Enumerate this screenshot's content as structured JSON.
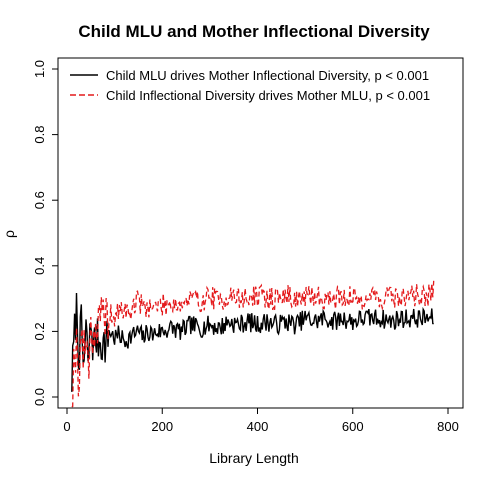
{
  "chart_data": {
    "type": "line",
    "title": "Child MLU and Mother Inflectional Diversity",
    "xlabel": "Library Length",
    "ylabel": "ρ",
    "xlim": [
      0,
      800
    ],
    "ylim": [
      0,
      1.0
    ],
    "xticks": [
      "0",
      "200",
      "400",
      "600",
      "800"
    ],
    "yticks": [
      "0.0",
      "0.2",
      "0.4",
      "0.6",
      "0.8",
      "1.0"
    ],
    "grid": false,
    "legend_position": "top-left",
    "library_length_range": [
      10,
      770
    ],
    "series": [
      {
        "name": "Child MLU drives Mother Inflectional Diversity, p < 0.001",
        "color": "#000000",
        "dash": "solid",
        "x": [
          10,
          15,
          20,
          25,
          30,
          35,
          40,
          45,
          50,
          55,
          60,
          70,
          80,
          90,
          100,
          110,
          120,
          130,
          140,
          150,
          160,
          170,
          180,
          190,
          200,
          220,
          240,
          260,
          280,
          300,
          320,
          340,
          360,
          380,
          400,
          420,
          440,
          460,
          480,
          500,
          520,
          540,
          560,
          580,
          600,
          620,
          640,
          660,
          680,
          700,
          720,
          740,
          760,
          770
        ],
        "values": [
          0.05,
          0.18,
          0.27,
          0.12,
          0.22,
          0.08,
          0.2,
          0.1,
          0.23,
          0.15,
          0.18,
          0.17,
          0.16,
          0.2,
          0.18,
          0.19,
          0.17,
          0.18,
          0.19,
          0.2,
          0.18,
          0.2,
          0.19,
          0.2,
          0.2,
          0.21,
          0.2,
          0.22,
          0.21,
          0.22,
          0.21,
          0.23,
          0.22,
          0.23,
          0.22,
          0.23,
          0.22,
          0.23,
          0.22,
          0.24,
          0.23,
          0.24,
          0.23,
          0.24,
          0.23,
          0.24,
          0.24,
          0.24,
          0.23,
          0.24,
          0.24,
          0.24,
          0.24,
          0.24
        ],
        "noise": 0.03,
        "seed": 7
      },
      {
        "name": "Child Inflectional Diversity drives Mother MLU, p < 0.001",
        "color": "#e41a1c",
        "dash": "dashed",
        "x": [
          10,
          15,
          20,
          25,
          30,
          35,
          40,
          45,
          50,
          55,
          60,
          70,
          80,
          90,
          100,
          110,
          120,
          130,
          140,
          150,
          160,
          170,
          180,
          190,
          200,
          220,
          240,
          260,
          280,
          300,
          320,
          340,
          360,
          380,
          400,
          420,
          440,
          460,
          480,
          500,
          520,
          540,
          560,
          580,
          600,
          620,
          640,
          660,
          680,
          700,
          720,
          740,
          760,
          770
        ],
        "values": [
          0.0,
          0.12,
          0.16,
          0.05,
          0.2,
          0.12,
          0.18,
          0.1,
          0.22,
          0.18,
          0.2,
          0.23,
          0.24,
          0.25,
          0.24,
          0.26,
          0.27,
          0.25,
          0.28,
          0.3,
          0.27,
          0.28,
          0.27,
          0.28,
          0.28,
          0.29,
          0.28,
          0.3,
          0.29,
          0.31,
          0.29,
          0.31,
          0.3,
          0.3,
          0.31,
          0.3,
          0.3,
          0.31,
          0.3,
          0.3,
          0.31,
          0.3,
          0.3,
          0.31,
          0.3,
          0.3,
          0.31,
          0.3,
          0.31,
          0.3,
          0.31,
          0.31,
          0.31,
          0.32
        ],
        "noise": 0.035,
        "seed": 19
      }
    ]
  }
}
